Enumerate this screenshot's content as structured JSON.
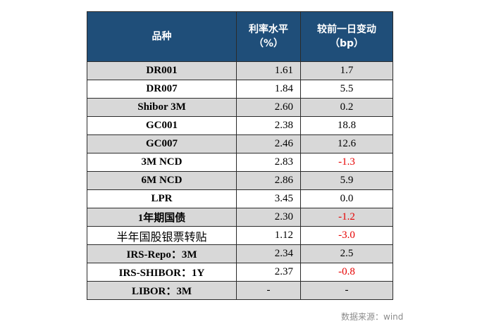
{
  "table": {
    "headers": {
      "name": "品种",
      "rate_line1": "利率水平",
      "rate_line2": "（%）",
      "change_line1": "较前一日变动",
      "change_line2": "（bp）"
    },
    "rows": [
      {
        "name": "DR001",
        "rate": "1.61",
        "change": "1.7",
        "negative": false
      },
      {
        "name": "DR007",
        "rate": "1.84",
        "change": "5.5",
        "negative": false
      },
      {
        "name": "Shibor 3M",
        "rate": "2.60",
        "change": "0.2",
        "negative": false
      },
      {
        "name": "GC001",
        "rate": "2.38",
        "change": "18.8",
        "negative": false
      },
      {
        "name": "GC007",
        "rate": "2.46",
        "change": "12.6",
        "negative": false
      },
      {
        "name": "3M NCD",
        "rate": "2.83",
        "change": "-1.3",
        "negative": true
      },
      {
        "name": "6M NCD",
        "rate": "2.86",
        "change": "5.9",
        "negative": false
      },
      {
        "name": "LPR",
        "rate": "3.45",
        "change": "0.0",
        "negative": false
      },
      {
        "name": "1年期国债",
        "rate": "2.30",
        "change": "-1.2",
        "negative": true
      },
      {
        "name": "半年国股银票转贴",
        "rate": "1.12",
        "change": "-3.0",
        "negative": true
      },
      {
        "name": "IRS-Repo：3M",
        "rate": "2.34",
        "change": "2.5",
        "negative": false
      },
      {
        "name": "IRS-SHIBOR：1Y",
        "rate": "2.37",
        "change": "-0.8",
        "negative": true
      },
      {
        "name": "LIBOR：3M",
        "rate": "-",
        "change": "-",
        "negative": false
      }
    ]
  },
  "source": "数据来源：wind",
  "colors": {
    "header_bg": "#1f4e79",
    "shade_row": "#d8d8d8",
    "negative": "#e60000"
  }
}
